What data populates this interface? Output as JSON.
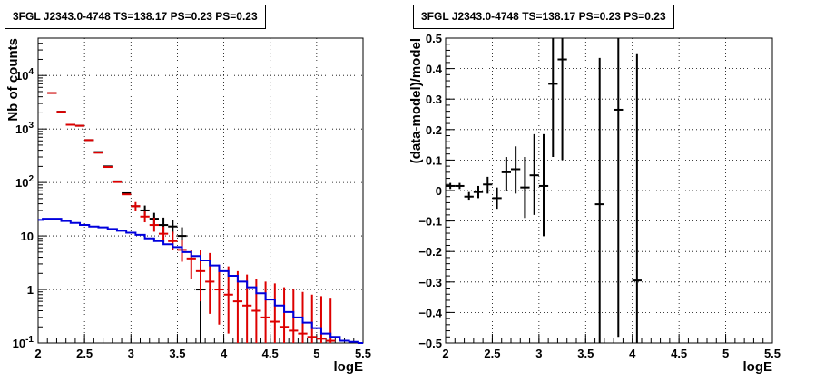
{
  "chart_data": [
    {
      "type": "scatter",
      "title": "3FGL J2343.0-4748 TS=138.17 PS=0.23 PS=0.23",
      "xlabel": "logE",
      "ylabel": "Nb of counts",
      "xlim": [
        2,
        5.5
      ],
      "ylim": [
        0.1,
        50000
      ],
      "yscale": "log",
      "grid": true,
      "x_ticks": [
        "2",
        "2.5",
        "3",
        "3.5",
        "4",
        "4.5",
        "5",
        "5.5"
      ],
      "y_ticks": [
        "10^-1",
        "1",
        "10",
        "10^2",
        "10^3",
        "10^4"
      ],
      "series": [
        {
          "name": "",
          "color": "#000000",
          "style": "errorbar",
          "points": [
            {
              "x": 2.15,
              "y": 4700
            },
            {
              "x": 2.25,
              "y": 2100
            },
            {
              "x": 2.35,
              "y": 1200
            },
            {
              "x": 2.45,
              "y": 1150
            },
            {
              "x": 2.55,
              "y": 620
            },
            {
              "x": 2.65,
              "y": 370
            },
            {
              "x": 2.75,
              "y": 200
            },
            {
              "x": 2.85,
              "y": 105
            },
            {
              "x": 2.95,
              "y": 63
            },
            {
              "x": 3.05,
              "y": 36
            },
            {
              "x": 3.15,
              "y": 30,
              "lo": 24,
              "hi": 37
            },
            {
              "x": 3.25,
              "y": 21,
              "lo": 16,
              "hi": 27
            },
            {
              "x": 3.35,
              "y": 16,
              "lo": 11,
              "hi": 22
            },
            {
              "x": 3.45,
              "y": 15,
              "lo": 11,
              "hi": 20
            },
            {
              "x": 3.55,
              "y": 10,
              "lo": 6.5,
              "hi": 14.5
            },
            {
              "x": 3.75,
              "y": 1,
              "lo": 0.1,
              "hi": 4.7
            }
          ]
        },
        {
          "name": "",
          "color": "#dd0000",
          "style": "errorbar",
          "points": [
            {
              "x": 2.15,
              "y": 4700
            },
            {
              "x": 2.25,
              "y": 2100
            },
            {
              "x": 2.35,
              "y": 1200
            },
            {
              "x": 2.45,
              "y": 1150
            },
            {
              "x": 2.55,
              "y": 620
            },
            {
              "x": 2.65,
              "y": 360
            },
            {
              "x": 2.75,
              "y": 195
            },
            {
              "x": 2.85,
              "y": 102
            },
            {
              "x": 2.95,
              "y": 60
            },
            {
              "x": 3.05,
              "y": 36,
              "lo": 30,
              "hi": 43
            },
            {
              "x": 3.15,
              "y": 23,
              "lo": 18,
              "hi": 30
            },
            {
              "x": 3.25,
              "y": 16,
              "lo": 12,
              "hi": 22
            },
            {
              "x": 3.35,
              "y": 11,
              "lo": 7.5,
              "hi": 15
            },
            {
              "x": 3.45,
              "y": 8,
              "lo": 5.5,
              "hi": 12
            },
            {
              "x": 3.55,
              "y": 5.5,
              "lo": 3.3,
              "hi": 8.5
            },
            {
              "x": 3.65,
              "y": 3.8,
              "lo": 1.6,
              "hi": 5.5
            },
            {
              "x": 3.75,
              "y": 2.2,
              "lo": 0.6,
              "hi": 5.4
            },
            {
              "x": 3.85,
              "y": 1.4,
              "lo": 0.35,
              "hi": 4.8
            },
            {
              "x": 3.95,
              "y": 1.0,
              "lo": 0.22,
              "hi": 2.9
            },
            {
              "x": 4.05,
              "y": 0.8,
              "lo": 0.15,
              "hi": 2.7
            },
            {
              "x": 4.15,
              "y": 0.6,
              "lo": 0.1,
              "hi": 2.2
            },
            {
              "x": 4.25,
              "y": 0.5,
              "lo": 0.1,
              "hi": 1.9
            },
            {
              "x": 4.35,
              "y": 0.4,
              "lo": 0.1,
              "hi": 1.6
            },
            {
              "x": 4.45,
              "y": 0.3,
              "lo": 0.1,
              "hi": 1.4
            },
            {
              "x": 4.55,
              "y": 0.25,
              "lo": 0.1,
              "hi": 1.3
            },
            {
              "x": 4.65,
              "y": 0.2,
              "lo": 0.1,
              "hi": 1.1
            },
            {
              "x": 4.75,
              "y": 0.17,
              "lo": 0.1,
              "hi": 1.0
            },
            {
              "x": 4.85,
              "y": 0.15,
              "lo": 0.1,
              "hi": 0.9
            },
            {
              "x": 4.95,
              "y": 0.13,
              "lo": 0.1,
              "hi": 0.8
            },
            {
              "x": 5.05,
              "y": 0.12,
              "lo": 0.1,
              "hi": 0.75
            },
            {
              "x": 5.15,
              "y": 0.11,
              "lo": 0.1,
              "hi": 0.7
            }
          ]
        },
        {
          "name": "",
          "color": "#0000dd",
          "style": "step",
          "x": [
            2.0,
            2.05,
            2.15,
            2.25,
            2.35,
            2.45,
            2.55,
            2.65,
            2.75,
            2.85,
            2.95,
            3.05,
            3.15,
            3.25,
            3.35,
            3.45,
            3.55,
            3.65,
            3.75,
            3.85,
            3.95,
            4.05,
            4.15,
            4.25,
            4.35,
            4.45,
            4.55,
            4.65,
            4.75,
            4.85,
            4.95,
            5.05,
            5.15,
            5.25,
            5.35,
            5.45
          ],
          "values": [
            20,
            21,
            21,
            19,
            17.5,
            16,
            15,
            14.5,
            13.5,
            12.5,
            11.5,
            10.5,
            9,
            8,
            7,
            6.2,
            5,
            4.2,
            3.5,
            2.8,
            2.2,
            1.8,
            1.4,
            1.1,
            0.85,
            0.65,
            0.5,
            0.38,
            0.3,
            0.24,
            0.19,
            0.15,
            0.13,
            0.11,
            0.105,
            0.1
          ]
        }
      ]
    },
    {
      "type": "scatter",
      "title": "3FGL J2343.0-4748 TS=138.17 PS=0.23 PS=0.23",
      "xlabel": "logE",
      "ylabel": "(data-model)/model",
      "xlim": [
        2,
        5.5
      ],
      "ylim": [
        -0.5,
        0.5
      ],
      "grid": true,
      "x_ticks": [
        "2",
        "2.5",
        "3",
        "3.5",
        "4",
        "4.5",
        "5",
        "5.5"
      ],
      "y_ticks": [
        "−0.5",
        "−0.4",
        "−0.3",
        "−0.2",
        "−0.1",
        "0",
        "0.1",
        "0.2",
        "0.3",
        "0.4",
        "0.5"
      ],
      "series": [
        {
          "name": "",
          "color": "#000000",
          "style": "errorbar",
          "points": [
            {
              "x": 2.05,
              "y": 0.015,
              "lo": 0.005,
              "hi": 0.025
            },
            {
              "x": 2.15,
              "y": 0.015,
              "lo": 0.005,
              "hi": 0.025
            },
            {
              "x": 2.25,
              "y": -0.02,
              "lo": -0.03,
              "hi": -0.005
            },
            {
              "x": 2.35,
              "y": -0.005,
              "lo": -0.025,
              "hi": 0.015
            },
            {
              "x": 2.45,
              "y": 0.02,
              "lo": -0.01,
              "hi": 0.045
            },
            {
              "x": 2.55,
              "y": -0.025,
              "lo": -0.06,
              "hi": 0.01
            },
            {
              "x": 2.65,
              "y": 0.06,
              "lo": 0.0,
              "hi": 0.11
            },
            {
              "x": 2.75,
              "y": 0.07,
              "lo": -0.01,
              "hi": 0.145
            },
            {
              "x": 2.85,
              "y": 0.01,
              "lo": -0.09,
              "hi": 0.11
            },
            {
              "x": 2.95,
              "y": 0.05,
              "lo": -0.08,
              "hi": 0.185
            },
            {
              "x": 3.05,
              "y": 0.015,
              "lo": -0.15,
              "hi": 0.185
            },
            {
              "x": 3.15,
              "y": 0.35,
              "lo": 0.11,
              "hi": 0.5
            },
            {
              "x": 3.25,
              "y": 0.43,
              "lo": 0.1,
              "hi": 0.5
            },
            {
              "x": 3.65,
              "y": -0.045,
              "lo": -0.5,
              "hi": 0.435
            },
            {
              "x": 3.85,
              "y": 0.265,
              "lo": -0.48,
              "hi": 0.5
            },
            {
              "x": 4.05,
              "y": -0.295,
              "lo": -0.5,
              "hi": 0.45
            }
          ]
        }
      ]
    }
  ]
}
